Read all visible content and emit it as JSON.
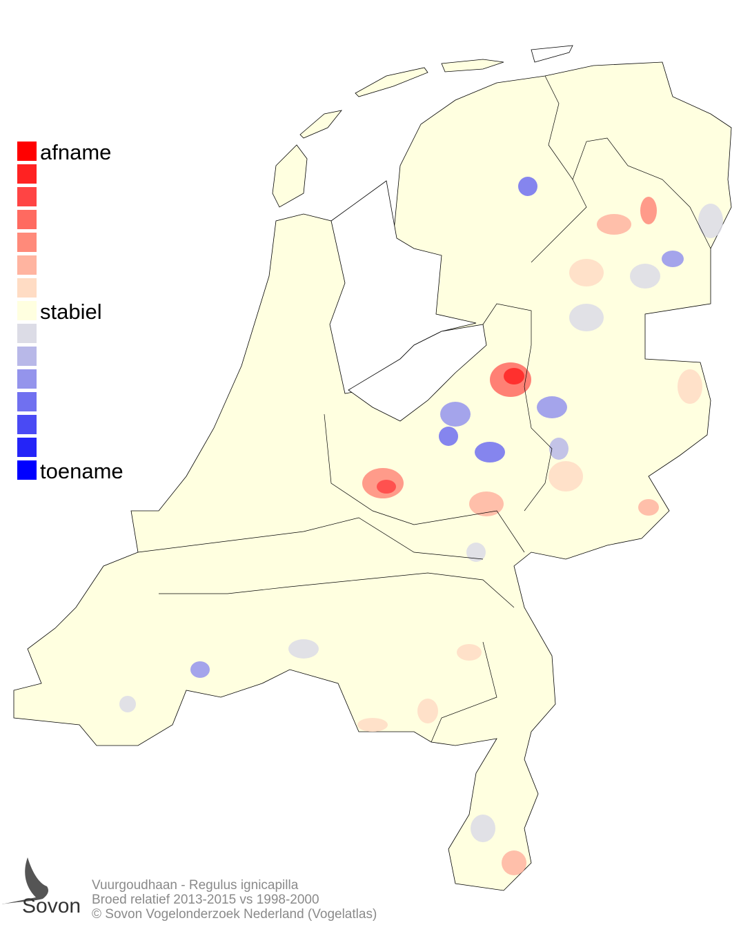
{
  "legend": {
    "colors": [
      "#ff0000",
      "#ff2222",
      "#ff4444",
      "#ff6a60",
      "#ff8a7a",
      "#ffb4a0",
      "#ffdcc4",
      "#ffffe0",
      "#dcdce6",
      "#b8b8e8",
      "#9494ec",
      "#7070f0",
      "#4a4af4",
      "#2424f8",
      "#0000ff"
    ],
    "top_label": "afname",
    "middle_label": "stabiel",
    "bottom_label": "toename"
  },
  "footer": {
    "line1": "Vuurgoudhaan - Regulus ignicapilla",
    "line2": "Broed relatief 2013-2015 vs 1998-2000",
    "line3": "© Sovon Vogelonderzoek Nederland (Vogelatlas)"
  },
  "logo": {
    "text": "Sovon"
  },
  "map": {
    "land_color": "#ffffe0",
    "outline_color": "#000000"
  }
}
